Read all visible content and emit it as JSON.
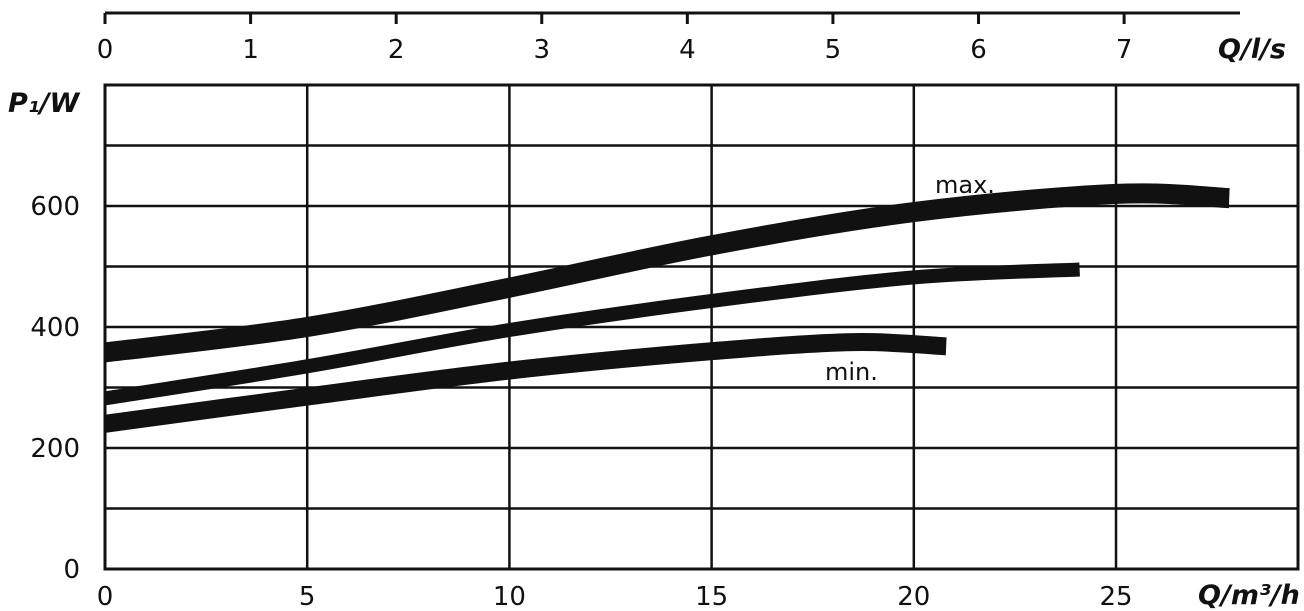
{
  "chart_data": {
    "type": "line",
    "title": "",
    "xlabel": "Q/m³/h",
    "ylabel": "P₁/W",
    "x2label": "Q/l/s",
    "xlim": [
      0,
      29.5
    ],
    "ylim": [
      0,
      800
    ],
    "x_ticks": [
      0,
      5,
      10,
      15,
      20,
      25
    ],
    "x2_ticks": [
      0,
      1,
      2,
      3,
      4,
      5,
      6,
      7
    ],
    "y_ticks": [
      0,
      200,
      400,
      600
    ],
    "y_gridlines": [
      0,
      100,
      200,
      300,
      400,
      500,
      600,
      700,
      800
    ],
    "x_gridlines": [
      0,
      5,
      10,
      15,
      20,
      25,
      29.5
    ],
    "grid": true,
    "legend": "none",
    "series": [
      {
        "name": "max.",
        "x": [
          0,
          5,
          10,
          15,
          20,
          25,
          27.8
        ],
        "y": [
          358,
          400,
          465,
          535,
          590,
          620,
          613
        ]
      },
      {
        "x": [
          0,
          5,
          10,
          15,
          20,
          24.1
        ],
        "y": [
          282,
          335,
          395,
          443,
          482,
          495
        ]
      },
      {
        "name": "min.",
        "x": [
          0,
          5,
          10,
          15,
          18.5,
          20.8
        ],
        "y": [
          240,
          285,
          328,
          360,
          375,
          368
        ]
      }
    ],
    "annotations": [
      {
        "text": "max.",
        "x": 21.2,
        "y": 640
      },
      {
        "text": "min.",
        "x": 18.1,
        "y": 333
      }
    ]
  }
}
